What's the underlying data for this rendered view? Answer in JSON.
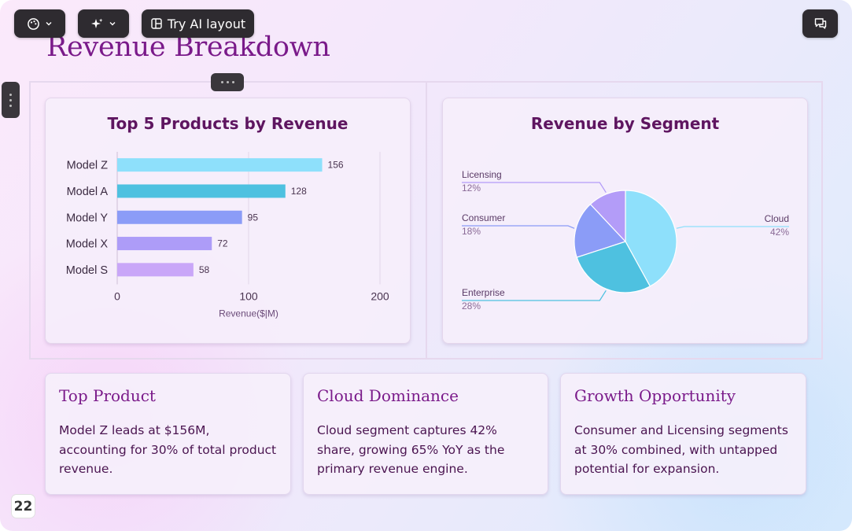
{
  "toolbar": {
    "theme_icon": "palette-icon",
    "ai_icon": "sparkle-icon",
    "try_ai_label": "Try AI layout",
    "comments_icon": "comments-icon"
  },
  "slide": {
    "title": "Revenue Breakdown",
    "page_number": "22"
  },
  "colors": {
    "title": "#7a1a8a",
    "chart_title": "#5e1560",
    "cloud": "#8ee0fb",
    "enterprise": "#4ec1e0",
    "consumer": "#8b9cf7",
    "licensing": "#b39cf8"
  },
  "chart_data": [
    {
      "type": "bar",
      "orientation": "horizontal",
      "title": "Top 5 Products by Revenue",
      "categories": [
        "Model Z",
        "Model A",
        "Model Y",
        "Model X",
        "Model S"
      ],
      "values": [
        156,
        128,
        95,
        72,
        58
      ],
      "xlabel": "Revenue($|M)",
      "ylabel": "",
      "xlim": [
        0,
        200
      ],
      "xticks": [
        0,
        100,
        200
      ],
      "bar_colors": [
        "#8ee0fb",
        "#4ec1e0",
        "#8b9cf7",
        "#ad9cf8",
        "#c9a6f8"
      ],
      "grid": true
    },
    {
      "type": "pie",
      "title": "Revenue by Segment",
      "slices": [
        {
          "label": "Cloud",
          "value": 42,
          "value_label": "42%",
          "color": "#8ee0fb"
        },
        {
          "label": "Enterprise",
          "value": 28,
          "value_label": "28%",
          "color": "#4ec1e0"
        },
        {
          "label": "Consumer",
          "value": 18,
          "value_label": "18%",
          "color": "#8b9cf7"
        },
        {
          "label": "Licensing",
          "value": 12,
          "value_label": "12%",
          "color": "#b39cf8"
        }
      ]
    }
  ],
  "insights": [
    {
      "title": "Top Product",
      "body": "Model Z leads at $156M, accounting for 30% of total product revenue."
    },
    {
      "title": "Cloud Dominance",
      "body": "Cloud segment captures 42% share, growing 65% YoY as the primary revenue engine."
    },
    {
      "title": "Growth Opportunity",
      "body": "Consumer and Licensing segments at 30% combined, with untapped potential for expansion."
    }
  ]
}
